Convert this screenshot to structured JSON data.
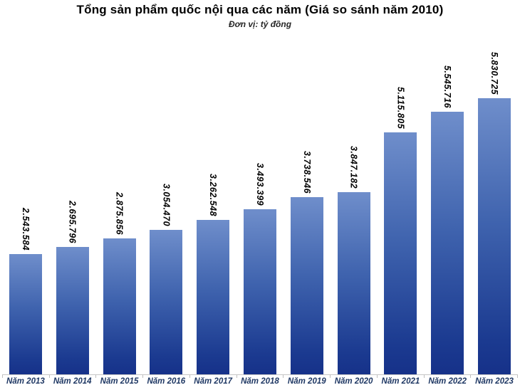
{
  "chart_data": {
    "type": "bar",
    "title": "Tổng sản phẩm quốc nội qua các năm (Giá so sánh năm 2010)",
    "subtitle": "Đơn vị: tỷ đồng",
    "categories": [
      "Năm 2013",
      "Năm 2014",
      "Năm 2015",
      "Năm 2016",
      "Năm 2017",
      "Năm 2018",
      "Năm 2019",
      "Năm 2020",
      "Năm 2021",
      "Năm 2022",
      "Năm 2023"
    ],
    "values": [
      2543584,
      2695796,
      2875856,
      3054470,
      3262548,
      3493399,
      3738546,
      3847182,
      5115805,
      5545716,
      5830725
    ],
    "value_labels": [
      "2.543.584",
      "2.695.796",
      "2.875.856",
      "3.054.470",
      "3.262.548",
      "3.493.399",
      "3.738.546",
      "3.847.182",
      "5.115.805",
      "5.545.716",
      "5.830.725"
    ],
    "xlabel": "",
    "ylabel": "",
    "ylim": [
      0,
      5830725
    ],
    "grid": false,
    "legend_position": "none",
    "value_label_rotation": "vertical-top-to-bottom",
    "colors": {
      "bar_gradient_top": "#6f8ecb",
      "bar_gradient_bottom": "#163189",
      "value_label": "#000000",
      "category_label": "#1f3864",
      "axis_line": "#c6c6c6",
      "background": "#ffffff"
    }
  }
}
